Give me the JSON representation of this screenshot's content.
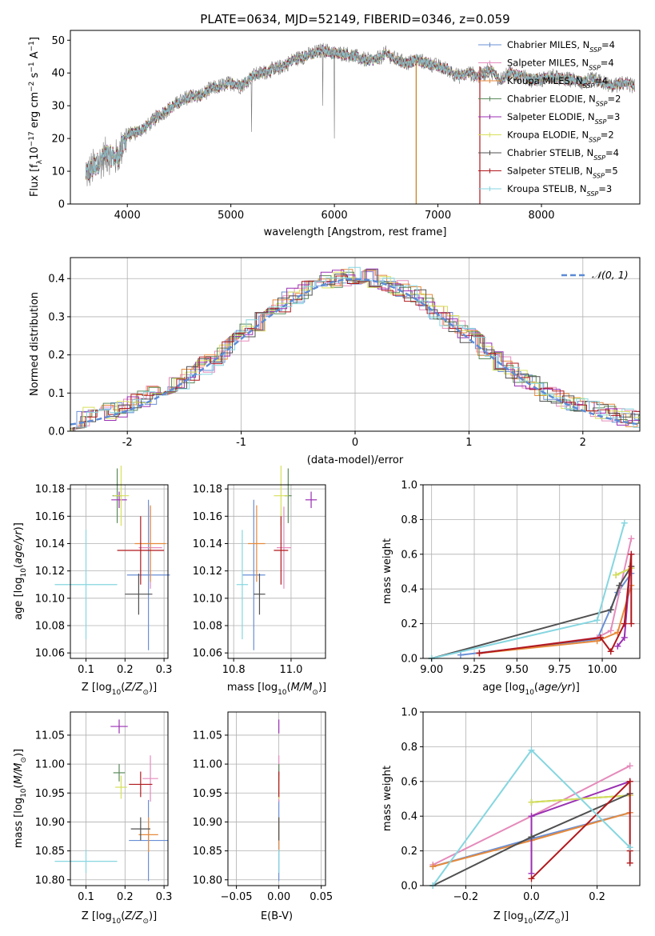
{
  "figure_title": "PLATE=0634, MJD=52149, FIBERID=0346, z=0.059",
  "colors": {
    "Chabrier MILES": "#6a8fd6",
    "Salpeter MILES": "#e58bbb",
    "Kroupa MILES": "#e68a3c",
    "Chabrier ELODIE": "#5a8a5a",
    "Salpeter ELODIE": "#9a2fb3",
    "Kroupa ELODIE": "#d7e05a",
    "Chabrier STELIB": "#505050",
    "Salpeter STELIB": "#b0181c",
    "Kroupa STELIB": "#86d6e0"
  },
  "chart_data": [
    {
      "id": "spectrum",
      "type": "line",
      "xlabel": "wavelength [Angstrom, rest frame]",
      "ylabel": "Flux [f",
      "xlim": [
        3450,
        8950
      ],
      "ylim": [
        0,
        53
      ],
      "xticks": [
        4000,
        5000,
        6000,
        7000,
        8000
      ],
      "yticks": [
        0,
        10,
        20,
        30,
        40,
        50
      ],
      "grid": false,
      "legend_position": "top-right",
      "legend": [
        {
          "name": "Chabrier MILES",
          "nssp": "4"
        },
        {
          "name": "Salpeter MILES",
          "nssp": "4"
        },
        {
          "name": "Kroupa MILES",
          "nssp": "4"
        },
        {
          "name": "Chabrier ELODIE",
          "nssp": "2"
        },
        {
          "name": "Salpeter ELODIE",
          "nssp": "3"
        },
        {
          "name": "Kroupa ELODIE",
          "nssp": "2"
        },
        {
          "name": "Chabrier STELIB",
          "nssp": "4"
        },
        {
          "name": "Salpeter STELIB",
          "nssp": "5"
        },
        {
          "name": "Kroupa STELIB",
          "nssp": "3"
        }
      ],
      "continuum": [
        [
          3600,
          9
        ],
        [
          3700,
          12
        ],
        [
          3800,
          15
        ],
        [
          3900,
          14
        ],
        [
          4000,
          21
        ],
        [
          4100,
          22
        ],
        [
          4200,
          24
        ],
        [
          4300,
          27
        ],
        [
          4400,
          29
        ],
        [
          4500,
          31
        ],
        [
          4600,
          33
        ],
        [
          4700,
          33
        ],
        [
          4800,
          35
        ],
        [
          4900,
          36
        ],
        [
          5000,
          37
        ],
        [
          5100,
          36
        ],
        [
          5200,
          39
        ],
        [
          5300,
          40
        ],
        [
          5400,
          41
        ],
        [
          5500,
          42
        ],
        [
          5600,
          44
        ],
        [
          5700,
          45
        ],
        [
          5800,
          46
        ],
        [
          5900,
          47
        ],
        [
          6000,
          46
        ],
        [
          6100,
          46
        ],
        [
          6200,
          45
        ],
        [
          6300,
          44
        ],
        [
          6400,
          44
        ],
        [
          6500,
          46
        ],
        [
          6600,
          44
        ],
        [
          6700,
          43
        ],
        [
          6800,
          44
        ],
        [
          6900,
          43
        ],
        [
          7000,
          42
        ],
        [
          7100,
          41
        ],
        [
          7200,
          39
        ],
        [
          7300,
          40
        ],
        [
          7400,
          39
        ],
        [
          7500,
          41
        ],
        [
          7600,
          38
        ],
        [
          7700,
          40
        ],
        [
          7800,
          39
        ],
        [
          7900,
          38
        ],
        [
          8000,
          38
        ],
        [
          8100,
          39
        ],
        [
          8200,
          38
        ],
        [
          8300,
          38
        ],
        [
          8400,
          37
        ],
        [
          8500,
          38
        ],
        [
          8600,
          37
        ],
        [
          8700,
          36
        ],
        [
          8800,
          37
        ],
        [
          8900,
          36
        ]
      ]
    },
    {
      "id": "residuals",
      "type": "histogram",
      "xlabel": "(data-model)/error",
      "ylabel": "Normed distribution",
      "xlim": [
        -2.5,
        2.5
      ],
      "ylim": [
        0,
        0.455
      ],
      "xticks": [
        -2,
        -1,
        0,
        1,
        2
      ],
      "yticks": [
        0.0,
        0.1,
        0.2,
        0.3,
        0.4
      ],
      "grid": true,
      "legend_position": "top-right",
      "reference_curve": {
        "label": "𝒩(0, 1)",
        "mean": 0,
        "sigma": 1
      }
    },
    {
      "id": "age_vs_Z",
      "type": "scatter",
      "xlabel": "Z [log",
      "ylabel": "age  [log",
      "xlim": [
        0.06,
        0.31
      ],
      "ylim": [
        10.056,
        10.183
      ],
      "xticks": [
        0.1,
        0.2,
        0.3
      ],
      "yticks": [
        10.06,
        10.08,
        10.1,
        10.12,
        10.14,
        10.16,
        10.18
      ],
      "grid": true,
      "points": [
        {
          "series": "Chabrier MILES",
          "x": 0.26,
          "y": 10.117,
          "xerr": 0.055,
          "yerr": 0.055
        },
        {
          "series": "Salpeter MILES",
          "x": 0.265,
          "y": 10.137,
          "xerr": 0.03,
          "yerr": 0.03
        },
        {
          "series": "Kroupa MILES",
          "x": 0.265,
          "y": 10.14,
          "xerr": 0.04,
          "yerr": 0.028
        },
        {
          "series": "Chabrier ELODIE",
          "x": 0.18,
          "y": 10.175,
          "xerr": 0.012,
          "yerr": 0.02
        },
        {
          "series": "Salpeter ELODIE",
          "x": 0.185,
          "y": 10.172,
          "xerr": 0.02,
          "yerr": 0.006
        },
        {
          "series": "Kroupa ELODIE",
          "x": 0.19,
          "y": 10.175,
          "xerr": 0.02,
          "yerr": 0.022
        },
        {
          "series": "Chabrier STELIB",
          "x": 0.235,
          "y": 10.103,
          "xerr": 0.035,
          "yerr": 0.015
        },
        {
          "series": "Salpeter STELIB",
          "x": 0.24,
          "y": 10.135,
          "xerr": 0.06,
          "yerr": 0.025
        },
        {
          "series": "Kroupa STELIB",
          "x": 0.1,
          "y": 10.11,
          "xerr": 0.08,
          "yerr": 0.04
        }
      ]
    },
    {
      "id": "age_vs_mass",
      "type": "scatter",
      "xlabel": "mass [log",
      "ylabel": "",
      "xlim": [
        10.78,
        11.12
      ],
      "ylim": [
        10.056,
        10.183
      ],
      "xticks": [
        10.8,
        11.0
      ],
      "yticks": [
        10.06,
        10.08,
        10.1,
        10.12,
        10.14,
        10.16,
        10.18
      ],
      "grid": true,
      "points": [
        {
          "series": "Chabrier MILES",
          "x": 10.87,
          "y": 10.117,
          "xerr": 0.04,
          "yerr": 0.055
        },
        {
          "series": "Salpeter MILES",
          "x": 10.975,
          "y": 10.137,
          "xerr": 0.025,
          "yerr": 0.03
        },
        {
          "series": "Kroupa MILES",
          "x": 10.88,
          "y": 10.14,
          "xerr": 0.03,
          "yerr": 0.028
        },
        {
          "series": "Chabrier ELODIE",
          "x": 10.99,
          "y": 10.175,
          "xerr": 0.012,
          "yerr": 0.02
        },
        {
          "series": "Salpeter ELODIE",
          "x": 11.07,
          "y": 10.172,
          "xerr": 0.02,
          "yerr": 0.006
        },
        {
          "series": "Kroupa ELODIE",
          "x": 10.965,
          "y": 10.175,
          "xerr": 0.025,
          "yerr": 0.022
        },
        {
          "series": "Chabrier STELIB",
          "x": 10.89,
          "y": 10.103,
          "xerr": 0.02,
          "yerr": 0.015
        },
        {
          "series": "Salpeter STELIB",
          "x": 10.965,
          "y": 10.135,
          "xerr": 0.025,
          "yerr": 0.025
        },
        {
          "series": "Kroupa STELIB",
          "x": 10.83,
          "y": 10.11,
          "xerr": 0.02,
          "yerr": 0.04
        }
      ]
    },
    {
      "id": "mass_weight_vs_age",
      "type": "line",
      "xlabel": "age  [log",
      "ylabel": "mass weight",
      "xlim": [
        8.95,
        10.22
      ],
      "ylim": [
        0,
        1
      ],
      "xticks": [
        9.0,
        9.25,
        9.5,
        9.75,
        10.0
      ],
      "xticklabels": [
        "9.00",
        "9.25",
        "9.50",
        "9.75",
        "10.00"
      ],
      "yticks": [
        0.0,
        0.2,
        0.4,
        0.6,
        0.8,
        1.0
      ],
      "grid": true,
      "series": [
        {
          "name": "Chabrier MILES",
          "points": [
            [
              9.17,
              0.02
            ],
            [
              9.97,
              0.11
            ],
            [
              10.09,
              0.38
            ],
            [
              10.17,
              0.49
            ]
          ]
        },
        {
          "name": "Salpeter MILES",
          "points": [
            [
              9.28,
              0.03
            ],
            [
              9.97,
              0.12
            ],
            [
              10.05,
              0.16
            ],
            [
              10.17,
              0.69
            ]
          ]
        },
        {
          "name": "Kroupa MILES",
          "points": [
            [
              9.28,
              0.03
            ],
            [
              9.97,
              0.1
            ],
            [
              10.09,
              0.15
            ],
            [
              10.17,
              0.42
            ]
          ]
        },
        {
          "name": "Chabrier ELODIE",
          "points": [
            [
              10.08,
              0.48
            ],
            [
              10.17,
              0.52
            ]
          ]
        },
        {
          "name": "Salpeter ELODIE",
          "points": [
            [
              10.09,
              0.07
            ],
            [
              10.13,
              0.12
            ],
            [
              10.17,
              0.6
            ]
          ]
        },
        {
          "name": "Kroupa ELODIE",
          "points": [
            [
              10.08,
              0.48
            ],
            [
              10.17,
              0.52
            ]
          ]
        },
        {
          "name": "Chabrier STELIB",
          "points": [
            [
              9.0,
              0.0
            ],
            [
              10.05,
              0.28
            ],
            [
              10.1,
              0.42
            ],
            [
              10.17,
              0.53
            ]
          ]
        },
        {
          "name": "Salpeter STELIB",
          "points": [
            [
              9.28,
              0.03
            ],
            [
              9.99,
              0.12
            ],
            [
              10.05,
              0.04
            ],
            [
              10.13,
              0.2
            ],
            [
              10.17,
              0.6
            ],
            [
              10.17,
              0.2
            ]
          ]
        },
        {
          "name": "Kroupa STELIB",
          "points": [
            [
              9.0,
              0.0
            ],
            [
              9.97,
              0.22
            ],
            [
              10.13,
              0.78
            ]
          ]
        }
      ]
    },
    {
      "id": "mass_vs_Z",
      "type": "scatter",
      "xlabel": "Z [log",
      "ylabel": "mass [log",
      "xlim": [
        0.06,
        0.31
      ],
      "ylim": [
        10.79,
        11.09
      ],
      "xticks": [
        0.1,
        0.2,
        0.3
      ],
      "yticks": [
        10.8,
        10.85,
        10.9,
        10.95,
        11.0,
        11.05
      ],
      "grid": true,
      "points": [
        {
          "series": "Chabrier MILES",
          "x": 0.26,
          "y": 10.868,
          "xerr": 0.05,
          "yerr": 0.07
        },
        {
          "series": "Salpeter MILES",
          "x": 0.265,
          "y": 10.975,
          "xerr": 0.02,
          "yerr": 0.04
        },
        {
          "series": "Kroupa MILES",
          "x": 0.26,
          "y": 10.878,
          "xerr": 0.025,
          "yerr": 0.03
        },
        {
          "series": "Chabrier ELODIE",
          "x": 0.185,
          "y": 10.985,
          "xerr": 0.015,
          "yerr": 0.015
        },
        {
          "series": "Salpeter ELODIE",
          "x": 0.185,
          "y": 11.065,
          "xerr": 0.022,
          "yerr": 0.012
        },
        {
          "series": "Kroupa ELODIE",
          "x": 0.19,
          "y": 10.96,
          "xerr": 0.015,
          "yerr": 0.02
        },
        {
          "series": "Chabrier STELIB",
          "x": 0.24,
          "y": 10.888,
          "xerr": 0.025,
          "yerr": 0.02
        },
        {
          "series": "Salpeter STELIB",
          "x": 0.24,
          "y": 10.965,
          "xerr": 0.03,
          "yerr": 0.022
        },
        {
          "series": "Kroupa STELIB",
          "x": 0.1,
          "y": 10.832,
          "xerr": 0.08,
          "yerr": 0.02
        }
      ]
    },
    {
      "id": "mass_vs_ebv",
      "type": "scatter",
      "xlabel": "E(B-V)",
      "ylabel": "",
      "xlim": [
        -0.06,
        0.055
      ],
      "ylim": [
        10.79,
        11.09
      ],
      "xticks": [
        -0.05,
        0.0,
        0.05
      ],
      "xticklabels": [
        "−0.05",
        "0.00",
        "0.05"
      ],
      "yticks": [
        10.8,
        10.85,
        10.9,
        10.95,
        11.0,
        11.05
      ],
      "grid": true,
      "points": [
        {
          "series": "Chabrier MILES",
          "x": 0.0,
          "y": 10.868,
          "yerr": 0.07
        },
        {
          "series": "Salpeter MILES",
          "x": 0.0,
          "y": 10.975,
          "yerr": 0.04
        },
        {
          "series": "Kroupa MILES",
          "x": 0.0,
          "y": 10.878,
          "yerr": 0.03
        },
        {
          "series": "Chabrier ELODIE",
          "x": 0.0,
          "y": 10.985,
          "yerr": 0.015
        },
        {
          "series": "Salpeter ELODIE",
          "x": 0.0,
          "y": 11.065,
          "yerr": 0.012
        },
        {
          "series": "Kroupa ELODIE",
          "x": 0.0,
          "y": 10.96,
          "yerr": 0.02
        },
        {
          "series": "Chabrier STELIB",
          "x": 0.0,
          "y": 10.888,
          "yerr": 0.02
        },
        {
          "series": "Salpeter STELIB",
          "x": 0.0,
          "y": 10.965,
          "yerr": 0.022
        },
        {
          "series": "Kroupa STELIB",
          "x": 0.0,
          "y": 10.832,
          "yerr": 0.02
        }
      ]
    },
    {
      "id": "mass_weight_vs_Z",
      "type": "line",
      "xlabel": "Z [log",
      "ylabel": "mass weight",
      "xlim": [
        -0.33,
        0.33
      ],
      "ylim": [
        0,
        1
      ],
      "xticks": [
        -0.2,
        0.0,
        0.2
      ],
      "xticklabels": [
        "−0.2",
        "0.0",
        "0.2"
      ],
      "yticks": [
        0.0,
        0.2,
        0.4,
        0.6,
        0.8,
        1.0
      ],
      "grid": true,
      "series": [
        {
          "name": "Chabrier MILES",
          "points": [
            [
              -0.3,
              0.11
            ],
            [
              0.0,
              0.27
            ],
            [
              0.3,
              0.42
            ]
          ]
        },
        {
          "name": "Salpeter MILES",
          "points": [
            [
              -0.3,
              0.12
            ],
            [
              0.0,
              0.4
            ],
            [
              0.3,
              0.69
            ]
          ]
        },
        {
          "name": "Kroupa MILES",
          "points": [
            [
              -0.3,
              0.11
            ],
            [
              0.0,
              0.26
            ],
            [
              0.3,
              0.42
            ]
          ]
        },
        {
          "name": "Chabrier ELODIE",
          "points": [
            [
              0.0,
              0.48
            ],
            [
              0.3,
              0.52
            ]
          ]
        },
        {
          "name": "Salpeter ELODIE",
          "points": [
            [
              0.0,
              0.07
            ],
            [
              0.0,
              0.4
            ],
            [
              0.3,
              0.6
            ]
          ]
        },
        {
          "name": "Kroupa ELODIE",
          "points": [
            [
              0.0,
              0.48
            ],
            [
              0.3,
              0.52
            ]
          ]
        },
        {
          "name": "Chabrier STELIB",
          "points": [
            [
              -0.3,
              0.0
            ],
            [
              0.0,
              0.28
            ],
            [
              0.3,
              0.53
            ]
          ]
        },
        {
          "name": "Salpeter STELIB",
          "points": [
            [
              0.0,
              0.04
            ],
            [
              0.3,
              0.6
            ],
            [
              0.3,
              0.2
            ],
            [
              0.3,
              0.13
            ]
          ]
        },
        {
          "name": "Kroupa STELIB",
          "points": [
            [
              -0.3,
              0.0
            ],
            [
              0.0,
              0.78
            ],
            [
              0.3,
              0.22
            ]
          ]
        }
      ]
    }
  ]
}
